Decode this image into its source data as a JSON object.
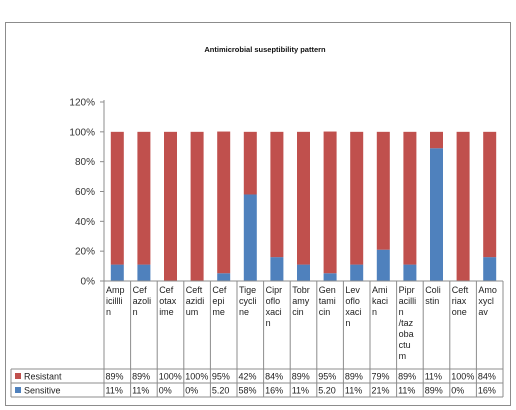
{
  "chart_data": {
    "type": "bar",
    "stacked": true,
    "title": "Antimicrobial suseptibility pattern",
    "categories": [
      [
        "Amp",
        "icillli",
        "n"
      ],
      [
        "Cef",
        "azoli",
        "n"
      ],
      [
        "Cef",
        "otax",
        "ime"
      ],
      [
        "Ceft",
        "azidi",
        "um"
      ],
      [
        "Cef",
        "epi",
        "me"
      ],
      [
        "Tige",
        "cycli",
        "ne"
      ],
      [
        "Cipr",
        "oflo",
        "xaci",
        "n"
      ],
      [
        "Tobr",
        "amy",
        "cin"
      ],
      [
        "Gen",
        "tami",
        "cin"
      ],
      [
        "Lev",
        "oflo",
        "xaci",
        "n"
      ],
      [
        "Ami",
        "kaci",
        "n"
      ],
      [
        "Pipr",
        "acilli",
        "n",
        "/taz",
        "oba",
        "ctu",
        "m"
      ],
      [
        "Coli",
        "stin"
      ],
      [
        "Ceft",
        "riax",
        "one"
      ],
      [
        "Amo",
        "xycl",
        "av"
      ]
    ],
    "series": [
      {
        "name": "Resistant",
        "color": "#c0504d",
        "labels": [
          "89%",
          "89%",
          "100%",
          "100%",
          "95%",
          "42%",
          "84%",
          "89%",
          "95%",
          "89%",
          "79%",
          "89%",
          "11%",
          "100%",
          "84%"
        ],
        "values": [
          89,
          89,
          100,
          100,
          95,
          42,
          84,
          89,
          95,
          89,
          79,
          89,
          11,
          100,
          84
        ]
      },
      {
        "name": "Sensitive",
        "color": "#4f81bd",
        "labels": [
          "11%",
          "11%",
          "0%",
          "0%",
          "5.20",
          "58%",
          "16%",
          "11%",
          "5.20",
          "11%",
          "21%",
          "11%",
          "89%",
          "0%",
          "16%"
        ],
        "values": [
          11,
          11,
          0,
          0,
          5.2,
          58,
          16,
          11,
          5.2,
          11,
          21,
          11,
          89,
          0,
          16
        ]
      }
    ],
    "yticks": [
      "0%",
      "20%",
      "40%",
      "60%",
      "80%",
      "100%",
      "120%"
    ],
    "ylim": [
      0,
      120
    ],
    "grid": false,
    "legend": "data-table"
  }
}
